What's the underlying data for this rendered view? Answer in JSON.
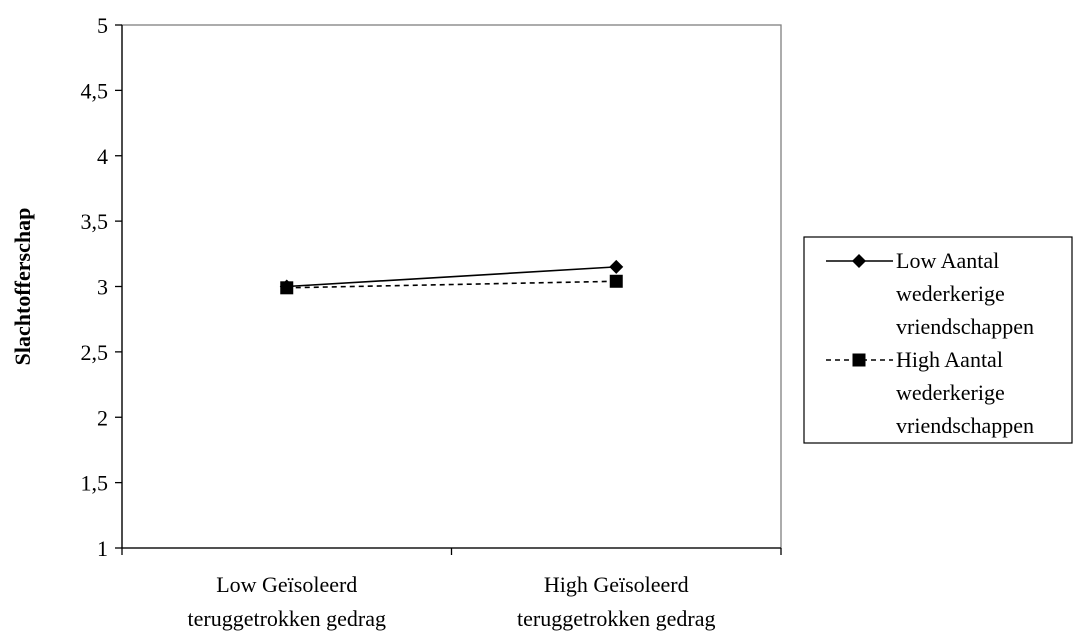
{
  "chart_data": {
    "type": "line",
    "title": "",
    "xlabel": "",
    "ylabel": "Slachtofferschap",
    "categories": [
      [
        "Low Geïsoleerd",
        "teruggetrokken gedrag"
      ],
      [
        "High Geïsoleerd",
        "teruggetrokken gedrag"
      ]
    ],
    "ylim": [
      1,
      5
    ],
    "yticks": [
      1,
      1.5,
      2,
      2.5,
      3,
      3.5,
      4,
      4.5,
      5
    ],
    "ytick_labels": [
      "1",
      "1,5",
      "2",
      "2,5",
      "3",
      "3,5",
      "4",
      "4,5",
      "5"
    ],
    "grid": false,
    "legend_position": "right",
    "series": [
      {
        "name": [
          "Low Aantal",
          "wederkerige",
          "vriendschappen"
        ],
        "values": [
          3.0,
          3.15
        ],
        "marker": "diamond",
        "line_style": "solid",
        "color": "#000000"
      },
      {
        "name": [
          "High Aantal",
          "wederkerige",
          "vriendschappen"
        ],
        "values": [
          2.99,
          3.04
        ],
        "marker": "square",
        "line_style": "dashed",
        "color": "#000000"
      }
    ]
  }
}
